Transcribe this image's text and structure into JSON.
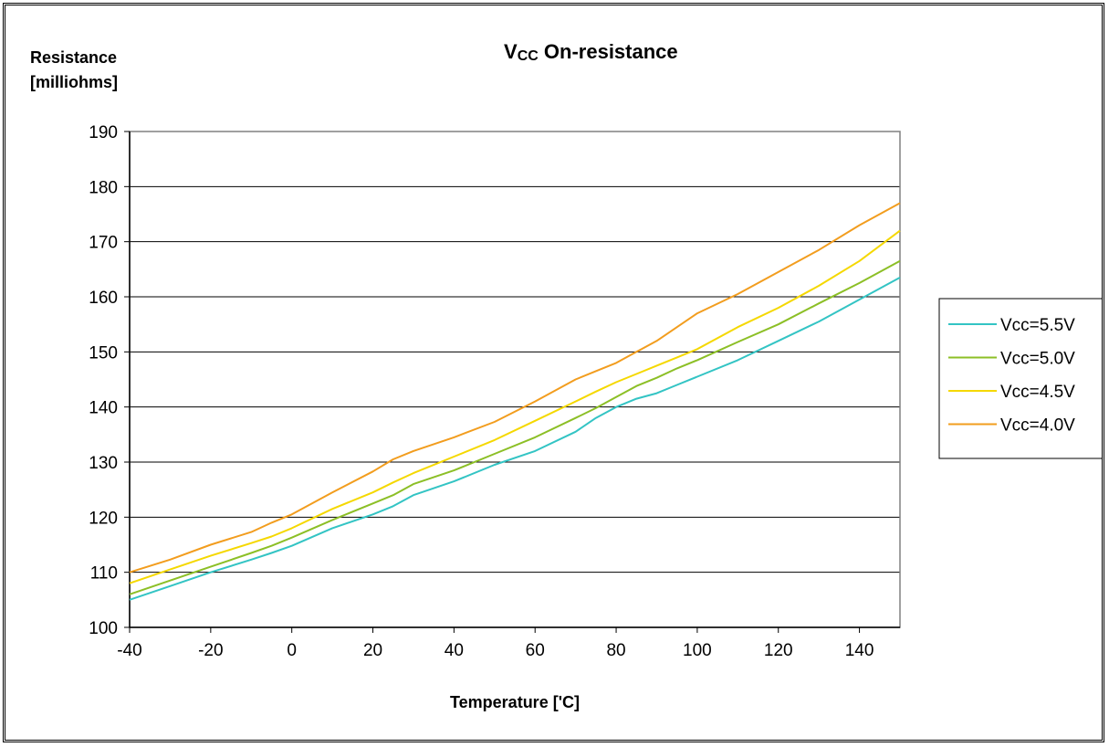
{
  "chart_data": {
    "type": "line",
    "title_main": "V",
    "title_sub": "CC",
    "title_rest": " On-resistance",
    "ylabel_line1": "Resistance",
    "ylabel_line2": "[milliohms]",
    "xlabel": "Temperature ['C]",
    "xlim": [
      -40,
      150
    ],
    "ylim": [
      100,
      190
    ],
    "xticks": [
      "-40",
      "-20",
      "0",
      "20",
      "40",
      "60",
      "80",
      "100",
      "120",
      "140"
    ],
    "xtick_values": [
      -40,
      -20,
      0,
      20,
      40,
      60,
      80,
      100,
      120,
      140
    ],
    "yticks": [
      "100",
      "110",
      "120",
      "130",
      "140",
      "150",
      "160",
      "170",
      "180",
      "190"
    ],
    "ytick_values": [
      100,
      110,
      120,
      130,
      140,
      150,
      160,
      170,
      180,
      190
    ],
    "grid": "horizontal",
    "legend_position": "right",
    "x": [
      -40,
      -30,
      -20,
      -10,
      -5,
      0,
      10,
      20,
      25,
      30,
      40,
      50,
      60,
      70,
      75,
      80,
      85,
      90,
      95,
      100,
      110,
      120,
      130,
      140,
      150
    ],
    "series": [
      {
        "name": "Vcc=5.5V",
        "color": "#33c4c4",
        "values": [
          105,
          107.5,
          110,
          112.3,
          113.5,
          114.8,
          118,
          120.5,
          122,
          124,
          126.5,
          129.5,
          132,
          135.5,
          138,
          140,
          141.5,
          142.5,
          144,
          145.5,
          148.5,
          152,
          155.5,
          159.5,
          163.5
        ]
      },
      {
        "name": "Vcc=5.0V",
        "color": "#8cbf26",
        "values": [
          106,
          108.5,
          111,
          113.5,
          114.8,
          116.3,
          119.5,
          122.5,
          124,
          126,
          128.5,
          131.5,
          134.5,
          138,
          139.8,
          141.8,
          143.8,
          145.3,
          147,
          148.5,
          151.8,
          155,
          158.8,
          162.5,
          166.5
        ]
      },
      {
        "name": "Vcc=4.5V",
        "color": "#f5d800",
        "values": [
          108,
          110.5,
          113,
          115.3,
          116.5,
          118,
          121.5,
          124.5,
          126.3,
          128,
          131,
          134,
          137.5,
          141,
          142.8,
          144.5,
          146,
          147.5,
          149,
          150.5,
          154.5,
          158,
          162,
          166.5,
          172
        ]
      },
      {
        "name": "Vcc=4.0V",
        "color": "#f29d1e",
        "values": [
          110,
          112.3,
          115,
          117.3,
          119,
          120.5,
          124.5,
          128.3,
          130.5,
          132,
          134.5,
          137.3,
          141,
          145,
          146.5,
          148,
          150,
          152,
          154.5,
          157,
          160.5,
          164.5,
          168.5,
          173,
          177
        ]
      }
    ]
  }
}
